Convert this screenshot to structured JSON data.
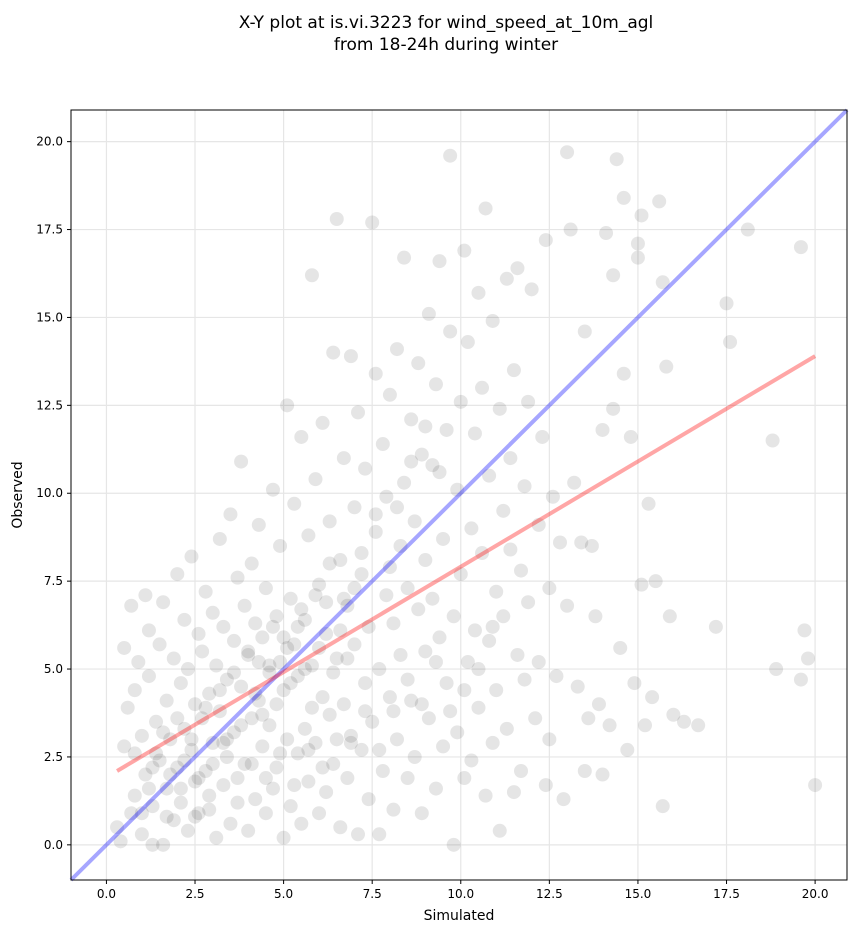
{
  "chart_data": {
    "type": "scatter",
    "title_line1": "X-Y plot at is.vi.3223 for wind_speed_at_10m_agl",
    "title_line2": "from 18-24h during winter",
    "xlabel": "Simulated",
    "ylabel": "Observed",
    "xlim": [
      -1.0,
      20.9
    ],
    "ylim": [
      -1.0,
      20.9
    ],
    "xticks": [
      0.0,
      2.5,
      5.0,
      7.5,
      10.0,
      12.5,
      15.0,
      17.5,
      20.0
    ],
    "yticks": [
      0.0,
      2.5,
      5.0,
      7.5,
      10.0,
      12.5,
      15.0,
      17.5,
      20.0
    ],
    "xtick_labels": [
      "0.0",
      "2.5",
      "5.0",
      "7.5",
      "10.0",
      "12.5",
      "15.0",
      "17.5",
      "20.0"
    ],
    "ytick_labels": [
      "0.0",
      "2.5",
      "5.0",
      "7.5",
      "10.0",
      "12.5",
      "15.0",
      "17.5",
      "20.0"
    ],
    "grid": true,
    "point_color": "#000000",
    "point_alpha": 0.1,
    "identity_line": {
      "color": "#0000ff",
      "alpha": 0.35,
      "x": [
        -1.0,
        20.9
      ],
      "y": [
        -1.0,
        20.9
      ]
    },
    "fit_line": {
      "color": "#ff0000",
      "alpha": 0.35,
      "x": [
        0.3,
        20.0
      ],
      "y": [
        2.1,
        13.9
      ]
    },
    "points": [
      [
        0.3,
        0.5
      ],
      [
        0.4,
        0.1
      ],
      [
        0.5,
        2.8
      ],
      [
        0.5,
        5.6
      ],
      [
        0.6,
        3.9
      ],
      [
        0.7,
        0.9
      ],
      [
        0.7,
        6.8
      ],
      [
        0.8,
        4.4
      ],
      [
        0.8,
        2.6
      ],
      [
        0.8,
        1.4
      ],
      [
        0.9,
        5.2
      ],
      [
        1.0,
        0.3
      ],
      [
        1.0,
        3.1
      ],
      [
        1.1,
        7.1
      ],
      [
        1.1,
        2.0
      ],
      [
        1.2,
        4.8
      ],
      [
        1.2,
        6.1
      ],
      [
        1.3,
        0.0
      ],
      [
        1.3,
        1.1
      ],
      [
        1.4,
        3.5
      ],
      [
        1.5,
        5.7
      ],
      [
        1.5,
        2.4
      ],
      [
        1.6,
        6.9
      ],
      [
        1.6,
        0.0
      ],
      [
        1.7,
        4.1
      ],
      [
        1.7,
        1.6
      ],
      [
        1.8,
        3.0
      ],
      [
        1.9,
        5.3
      ],
      [
        1.9,
        0.7
      ],
      [
        2.0,
        2.2
      ],
      [
        2.0,
        7.7
      ],
      [
        2.1,
        4.6
      ],
      [
        2.1,
        1.2
      ],
      [
        2.2,
        6.4
      ],
      [
        2.2,
        3.3
      ],
      [
        2.3,
        0.4
      ],
      [
        2.3,
        5.0
      ],
      [
        2.4,
        2.7
      ],
      [
        2.4,
        8.2
      ],
      [
        2.5,
        1.8
      ],
      [
        2.5,
        4.0
      ],
      [
        2.6,
        6.0
      ],
      [
        2.6,
        0.9
      ],
      [
        2.7,
        3.6
      ],
      [
        2.7,
        5.5
      ],
      [
        2.8,
        2.1
      ],
      [
        2.8,
        7.2
      ],
      [
        2.9,
        4.3
      ],
      [
        2.9,
        1.4
      ],
      [
        3.0,
        6.6
      ],
      [
        3.0,
        2.9
      ],
      [
        3.1,
        0.2
      ],
      [
        3.1,
        5.1
      ],
      [
        3.2,
        3.8
      ],
      [
        3.2,
        8.7
      ],
      [
        3.3,
        1.7
      ],
      [
        3.3,
        6.2
      ],
      [
        3.4,
        4.7
      ],
      [
        3.4,
        2.5
      ],
      [
        3.5,
        9.4
      ],
      [
        3.5,
        0.6
      ],
      [
        3.6,
        5.8
      ],
      [
        3.6,
        3.2
      ],
      [
        3.7,
        7.6
      ],
      [
        3.7,
        1.9
      ],
      [
        3.8,
        4.5
      ],
      [
        3.8,
        10.9
      ],
      [
        3.9,
        2.3
      ],
      [
        3.9,
        6.8
      ],
      [
        4.0,
        0.4
      ],
      [
        4.0,
        5.4
      ],
      [
        4.1,
        3.6
      ],
      [
        4.1,
        8.0
      ],
      [
        4.2,
        1.3
      ],
      [
        4.2,
        6.3
      ],
      [
        4.3,
        4.1
      ],
      [
        4.3,
        9.1
      ],
      [
        4.4,
        2.8
      ],
      [
        4.4,
        5.9
      ],
      [
        4.5,
        0.9
      ],
      [
        4.5,
        7.3
      ],
      [
        4.6,
        3.4
      ],
      [
        4.6,
        4.9
      ],
      [
        4.7,
        1.6
      ],
      [
        4.7,
        10.1
      ],
      [
        4.8,
        6.5
      ],
      [
        4.8,
        2.2
      ],
      [
        4.9,
        5.2
      ],
      [
        4.9,
        8.5
      ],
      [
        5.0,
        0.2
      ],
      [
        5.0,
        4.4
      ],
      [
        5.1,
        12.5
      ],
      [
        5.1,
        3.0
      ],
      [
        5.2,
        7.0
      ],
      [
        5.2,
        1.1
      ],
      [
        5.3,
        5.7
      ],
      [
        5.3,
        9.7
      ],
      [
        5.4,
        2.6
      ],
      [
        5.4,
        4.8
      ],
      [
        5.5,
        11.6
      ],
      [
        5.5,
        0.6
      ],
      [
        5.6,
        6.4
      ],
      [
        5.6,
        3.3
      ],
      [
        5.7,
        8.8
      ],
      [
        5.7,
        1.8
      ],
      [
        5.8,
        16.2
      ],
      [
        5.8,
        5.1
      ],
      [
        5.9,
        2.9
      ],
      [
        5.9,
        10.4
      ],
      [
        6.0,
        0.9
      ],
      [
        6.0,
        7.4
      ],
      [
        6.1,
        4.2
      ],
      [
        6.1,
        12.0
      ],
      [
        6.2,
        1.5
      ],
      [
        6.2,
        6.0
      ],
      [
        6.3,
        3.7
      ],
      [
        6.3,
        9.2
      ],
      [
        6.4,
        14.0
      ],
      [
        6.4,
        2.3
      ],
      [
        6.5,
        17.8
      ],
      [
        6.5,
        5.3
      ],
      [
        6.6,
        8.1
      ],
      [
        6.6,
        0.5
      ],
      [
        6.7,
        11.0
      ],
      [
        6.7,
        4.0
      ],
      [
        6.8,
        6.8
      ],
      [
        6.8,
        1.9
      ],
      [
        6.9,
        13.9
      ],
      [
        6.9,
        3.1
      ],
      [
        7.0,
        9.6
      ],
      [
        7.0,
        5.7
      ],
      [
        7.1,
        0.3
      ],
      [
        7.1,
        12.3
      ],
      [
        7.2,
        2.7
      ],
      [
        7.2,
        7.7
      ],
      [
        7.3,
        4.6
      ],
      [
        7.3,
        10.7
      ],
      [
        7.4,
        1.3
      ],
      [
        7.4,
        6.2
      ],
      [
        7.5,
        17.7
      ],
      [
        7.5,
        3.5
      ],
      [
        7.6,
        8.9
      ],
      [
        7.6,
        13.4
      ],
      [
        7.7,
        0.3
      ],
      [
        7.7,
        5.0
      ],
      [
        7.8,
        11.4
      ],
      [
        7.8,
        2.1
      ],
      [
        7.9,
        7.1
      ],
      [
        7.9,
        9.9
      ],
      [
        8.0,
        4.2
      ],
      [
        8.0,
        12.8
      ],
      [
        8.1,
        1.0
      ],
      [
        8.1,
        6.3
      ],
      [
        8.2,
        14.1
      ],
      [
        8.2,
        3.0
      ],
      [
        8.3,
        8.5
      ],
      [
        8.3,
        5.4
      ],
      [
        8.4,
        16.7
      ],
      [
        8.4,
        10.3
      ],
      [
        8.5,
        1.9
      ],
      [
        8.5,
        7.3
      ],
      [
        8.6,
        12.1
      ],
      [
        8.6,
        4.1
      ],
      [
        8.7,
        9.2
      ],
      [
        8.7,
        2.5
      ],
      [
        8.8,
        13.7
      ],
      [
        8.8,
        6.7
      ],
      [
        8.9,
        11.1
      ],
      [
        8.9,
        0.9
      ],
      [
        9.0,
        5.5
      ],
      [
        9.0,
        8.1
      ],
      [
        9.1,
        15.1
      ],
      [
        9.1,
        3.6
      ],
      [
        9.2,
        10.8
      ],
      [
        9.2,
        7.0
      ],
      [
        9.3,
        1.6
      ],
      [
        9.3,
        13.1
      ],
      [
        9.4,
        5.9
      ],
      [
        9.4,
        16.6
      ],
      [
        9.5,
        8.7
      ],
      [
        9.5,
        2.8
      ],
      [
        9.6,
        11.8
      ],
      [
        9.6,
        4.6
      ],
      [
        9.7,
        14.6
      ],
      [
        9.7,
        19.6
      ],
      [
        9.8,
        6.5
      ],
      [
        9.8,
        0.0
      ],
      [
        9.9,
        10.1
      ],
      [
        9.9,
        3.2
      ],
      [
        10.0,
        12.6
      ],
      [
        10.0,
        7.7
      ],
      [
        10.1,
        16.9
      ],
      [
        10.1,
        1.9
      ],
      [
        10.2,
        5.2
      ],
      [
        10.2,
        14.3
      ],
      [
        10.3,
        9.0
      ],
      [
        10.3,
        2.4
      ],
      [
        10.4,
        11.7
      ],
      [
        10.4,
        6.1
      ],
      [
        10.5,
        15.7
      ],
      [
        10.5,
        3.9
      ],
      [
        10.6,
        8.3
      ],
      [
        10.6,
        13.0
      ],
      [
        10.7,
        1.4
      ],
      [
        10.7,
        18.1
      ],
      [
        10.8,
        5.8
      ],
      [
        10.8,
        10.5
      ],
      [
        10.9,
        2.9
      ],
      [
        10.9,
        14.9
      ],
      [
        11.0,
        7.2
      ],
      [
        11.0,
        4.4
      ],
      [
        11.1,
        12.4
      ],
      [
        11.1,
        0.4
      ],
      [
        11.2,
        9.5
      ],
      [
        11.2,
        6.5
      ],
      [
        11.3,
        16.1
      ],
      [
        11.3,
        3.3
      ],
      [
        11.4,
        11.0
      ],
      [
        11.4,
        8.4
      ],
      [
        11.5,
        1.5
      ],
      [
        11.5,
        13.5
      ],
      [
        11.6,
        5.4
      ],
      [
        11.6,
        16.4
      ],
      [
        11.7,
        7.8
      ],
      [
        11.7,
        2.1
      ],
      [
        11.8,
        10.2
      ],
      [
        11.8,
        4.7
      ],
      [
        11.9,
        12.6
      ],
      [
        11.9,
        6.9
      ],
      [
        12.0,
        15.8
      ],
      [
        12.1,
        3.6
      ],
      [
        12.2,
        9.1
      ],
      [
        12.2,
        5.2
      ],
      [
        12.3,
        11.6
      ],
      [
        12.4,
        1.7
      ],
      [
        12.4,
        17.2
      ],
      [
        12.5,
        7.3
      ],
      [
        12.5,
        3.0
      ],
      [
        12.6,
        9.9
      ],
      [
        12.7,
        4.8
      ],
      [
        12.8,
        8.6
      ],
      [
        12.9,
        1.3
      ],
      [
        13.0,
        19.7
      ],
      [
        13.0,
        6.8
      ],
      [
        13.1,
        17.5
      ],
      [
        13.2,
        10.3
      ],
      [
        13.3,
        4.5
      ],
      [
        13.4,
        8.6
      ],
      [
        13.5,
        14.6
      ],
      [
        13.5,
        2.1
      ],
      [
        13.6,
        3.6
      ],
      [
        13.7,
        8.5
      ],
      [
        13.8,
        6.5
      ],
      [
        13.9,
        4.0
      ],
      [
        14.0,
        11.8
      ],
      [
        14.0,
        2.0
      ],
      [
        14.1,
        17.4
      ],
      [
        14.2,
        3.4
      ],
      [
        14.3,
        12.4
      ],
      [
        14.3,
        16.2
      ],
      [
        14.4,
        19.5
      ],
      [
        14.5,
        5.6
      ],
      [
        14.6,
        18.4
      ],
      [
        14.6,
        13.4
      ],
      [
        14.7,
        2.7
      ],
      [
        14.8,
        11.6
      ],
      [
        14.9,
        4.6
      ],
      [
        15.0,
        17.1
      ],
      [
        15.0,
        16.7
      ],
      [
        15.1,
        7.4
      ],
      [
        15.1,
        17.9
      ],
      [
        15.2,
        3.4
      ],
      [
        15.3,
        9.7
      ],
      [
        15.4,
        4.2
      ],
      [
        15.5,
        7.5
      ],
      [
        15.6,
        18.3
      ],
      [
        15.7,
        16.0
      ],
      [
        15.7,
        1.1
      ],
      [
        15.8,
        13.6
      ],
      [
        15.9,
        6.5
      ],
      [
        16.0,
        3.7
      ],
      [
        16.3,
        3.5
      ],
      [
        16.7,
        3.4
      ],
      [
        17.2,
        6.2
      ],
      [
        17.5,
        15.4
      ],
      [
        17.6,
        14.3
      ],
      [
        18.1,
        17.5
      ],
      [
        18.8,
        11.5
      ],
      [
        18.9,
        5.0
      ],
      [
        19.6,
        17.0
      ],
      [
        19.6,
        4.7
      ],
      [
        19.7,
        6.1
      ],
      [
        19.8,
        5.3
      ],
      [
        20.0,
        1.7
      ],
      [
        1.2,
        1.6
      ],
      [
        1.4,
        2.6
      ],
      [
        1.6,
        3.2
      ],
      [
        1.8,
        2.0
      ],
      [
        2.0,
        3.6
      ],
      [
        2.2,
        2.4
      ],
      [
        2.4,
        3.0
      ],
      [
        2.6,
        1.9
      ],
      [
        2.8,
        3.9
      ],
      [
        3.0,
        2.3
      ],
      [
        3.2,
        4.4
      ],
      [
        3.4,
        3.0
      ],
      [
        3.6,
        4.9
      ],
      [
        3.8,
        3.4
      ],
      [
        4.0,
        5.5
      ],
      [
        4.2,
        4.3
      ],
      [
        4.4,
        3.7
      ],
      [
        4.6,
        5.1
      ],
      [
        4.8,
        4.0
      ],
      [
        5.0,
        5.9
      ],
      [
        5.2,
        4.6
      ],
      [
        5.4,
        6.2
      ],
      [
        5.6,
        5.0
      ],
      [
        5.8,
        3.9
      ],
      [
        6.0,
        5.6
      ],
      [
        6.2,
        6.9
      ],
      [
        6.4,
        4.9
      ],
      [
        6.6,
        6.1
      ],
      [
        6.8,
        5.3
      ],
      [
        7.0,
        7.3
      ],
      [
        1.0,
        0.9
      ],
      [
        1.3,
        2.2
      ],
      [
        1.7,
        0.8
      ],
      [
        2.1,
        1.6
      ],
      [
        2.5,
        0.8
      ],
      [
        2.9,
        1.0
      ],
      [
        3.3,
        2.9
      ],
      [
        3.7,
        1.2
      ],
      [
        4.1,
        2.3
      ],
      [
        4.5,
        1.9
      ],
      [
        4.9,
        2.6
      ],
      [
        5.3,
        1.7
      ],
      [
        5.7,
        2.7
      ],
      [
        6.1,
        2.2
      ],
      [
        6.5,
        3.0
      ],
      [
        6.9,
        2.9
      ],
      [
        7.3,
        3.8
      ],
      [
        7.7,
        2.7
      ],
      [
        8.1,
        3.8
      ],
      [
        8.5,
        4.7
      ],
      [
        8.9,
        4.0
      ],
      [
        9.3,
        5.2
      ],
      [
        9.7,
        3.8
      ],
      [
        10.1,
        4.4
      ],
      [
        10.5,
        5.0
      ],
      [
        10.9,
        6.2
      ],
      [
        8.2,
        9.6
      ],
      [
        8.6,
        10.9
      ],
      [
        9.0,
        11.9
      ],
      [
        9.4,
        10.6
      ],
      [
        7.2,
        8.3
      ],
      [
        7.6,
        9.4
      ],
      [
        8.0,
        7.9
      ],
      [
        6.7,
        7.0
      ],
      [
        6.3,
        8.0
      ],
      [
        5.9,
        7.1
      ],
      [
        5.5,
        6.7
      ],
      [
        5.1,
        5.6
      ],
      [
        4.7,
        6.2
      ],
      [
        4.3,
        5.2
      ]
    ]
  }
}
